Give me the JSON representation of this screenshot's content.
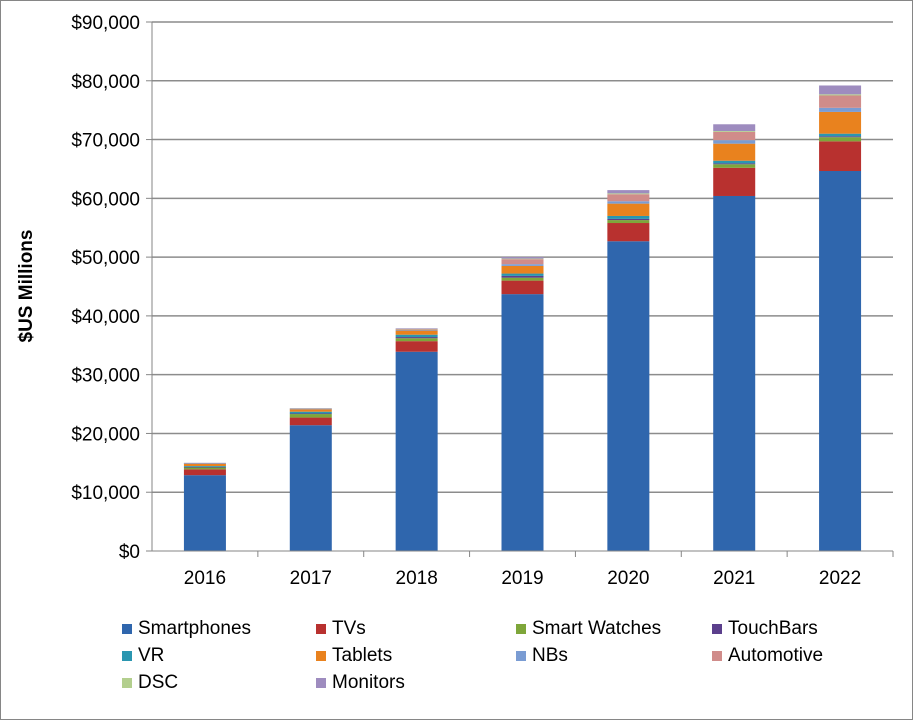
{
  "chart_data": {
    "type": "bar",
    "stacked": true,
    "title": "",
    "xlabel": "",
    "ylabel": "$US Millions",
    "ylim": [
      0,
      90000
    ],
    "yticks": [
      "$0",
      "$10,000",
      "$20,000",
      "$30,000",
      "$40,000",
      "$50,000",
      "$60,000",
      "$70,000",
      "$80,000",
      "$90,000"
    ],
    "grid": true,
    "legend_position": "bottom",
    "categories": [
      "2016",
      "2017",
      "2018",
      "2019",
      "2020",
      "2021",
      "2022"
    ],
    "series": [
      {
        "name": "Smartphones",
        "color": "#2F66AD",
        "values": [
          12900,
          21400,
          33900,
          43700,
          52700,
          60400,
          64650
        ]
      },
      {
        "name": "TVs",
        "color": "#B8312F",
        "values": [
          1000,
          1300,
          1800,
          2300,
          3100,
          4800,
          5050
        ]
      },
      {
        "name": "Smart Watches",
        "color": "#7EA63A",
        "values": [
          300,
          600,
          500,
          500,
          500,
          600,
          700
        ]
      },
      {
        "name": "TouchBars",
        "color": "#5B3F8C",
        "values": [
          100,
          100,
          200,
          300,
          200,
          150,
          150
        ]
      },
      {
        "name": "VR",
        "color": "#2A96B0",
        "values": [
          150,
          300,
          400,
          400,
          500,
          450,
          450
        ]
      },
      {
        "name": "Tablets",
        "color": "#E9821E",
        "values": [
          400,
          400,
          700,
          1300,
          2100,
          2900,
          3700
        ]
      },
      {
        "name": "NBs",
        "color": "#7A9CD3",
        "values": [
          50,
          50,
          100,
          300,
          400,
          600,
          700
        ]
      },
      {
        "name": "Automotive",
        "color": "#D08C8A",
        "values": [
          50,
          50,
          150,
          850,
          1200,
          1400,
          2100
        ]
      },
      {
        "name": "DSC",
        "color": "#B3CF8E",
        "values": [
          30,
          30,
          50,
          100,
          150,
          150,
          200
        ]
      },
      {
        "name": "Monitors",
        "color": "#9E8CBF",
        "values": [
          20,
          70,
          100,
          250,
          550,
          1150,
          1500
        ]
      }
    ]
  }
}
